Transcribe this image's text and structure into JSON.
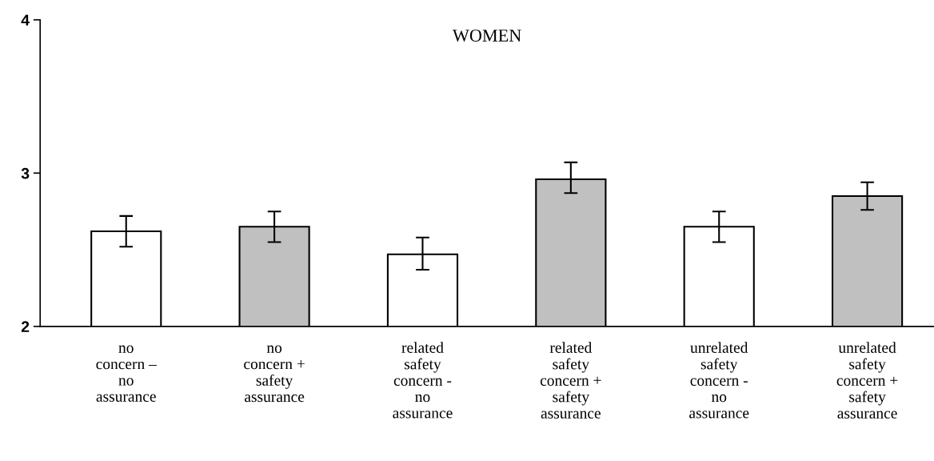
{
  "chart_data": {
    "type": "bar",
    "title": "WOMEN",
    "categories": [
      "no\nconcern –\nno\nassurance",
      "no\nconcern +\nsafety\nassurance",
      "related\nsafety\nconcern -\nno\nassurance",
      "related\nsafety\nconcern +\nsafety\nassurance",
      "unrelated\nsafety\nconcern -\nno\nassurance",
      "unrelated\nsafety\nconcern +\nsafety\nassurance"
    ],
    "values": [
      2.62,
      2.65,
      2.47,
      2.96,
      2.65,
      2.85
    ],
    "errors": [
      [
        2.52,
        2.72
      ],
      [
        2.55,
        2.75
      ],
      [
        2.37,
        2.58
      ],
      [
        2.87,
        3.07
      ],
      [
        2.55,
        2.75
      ],
      [
        2.76,
        2.94
      ]
    ],
    "colors": [
      "#ffffff",
      "#c0c0c0",
      "#ffffff",
      "#c0c0c0",
      "#ffffff",
      "#c0c0c0"
    ],
    "ylim": [
      2,
      4
    ],
    "yticks": [
      2,
      3,
      4
    ],
    "grid": false,
    "legend": false
  }
}
